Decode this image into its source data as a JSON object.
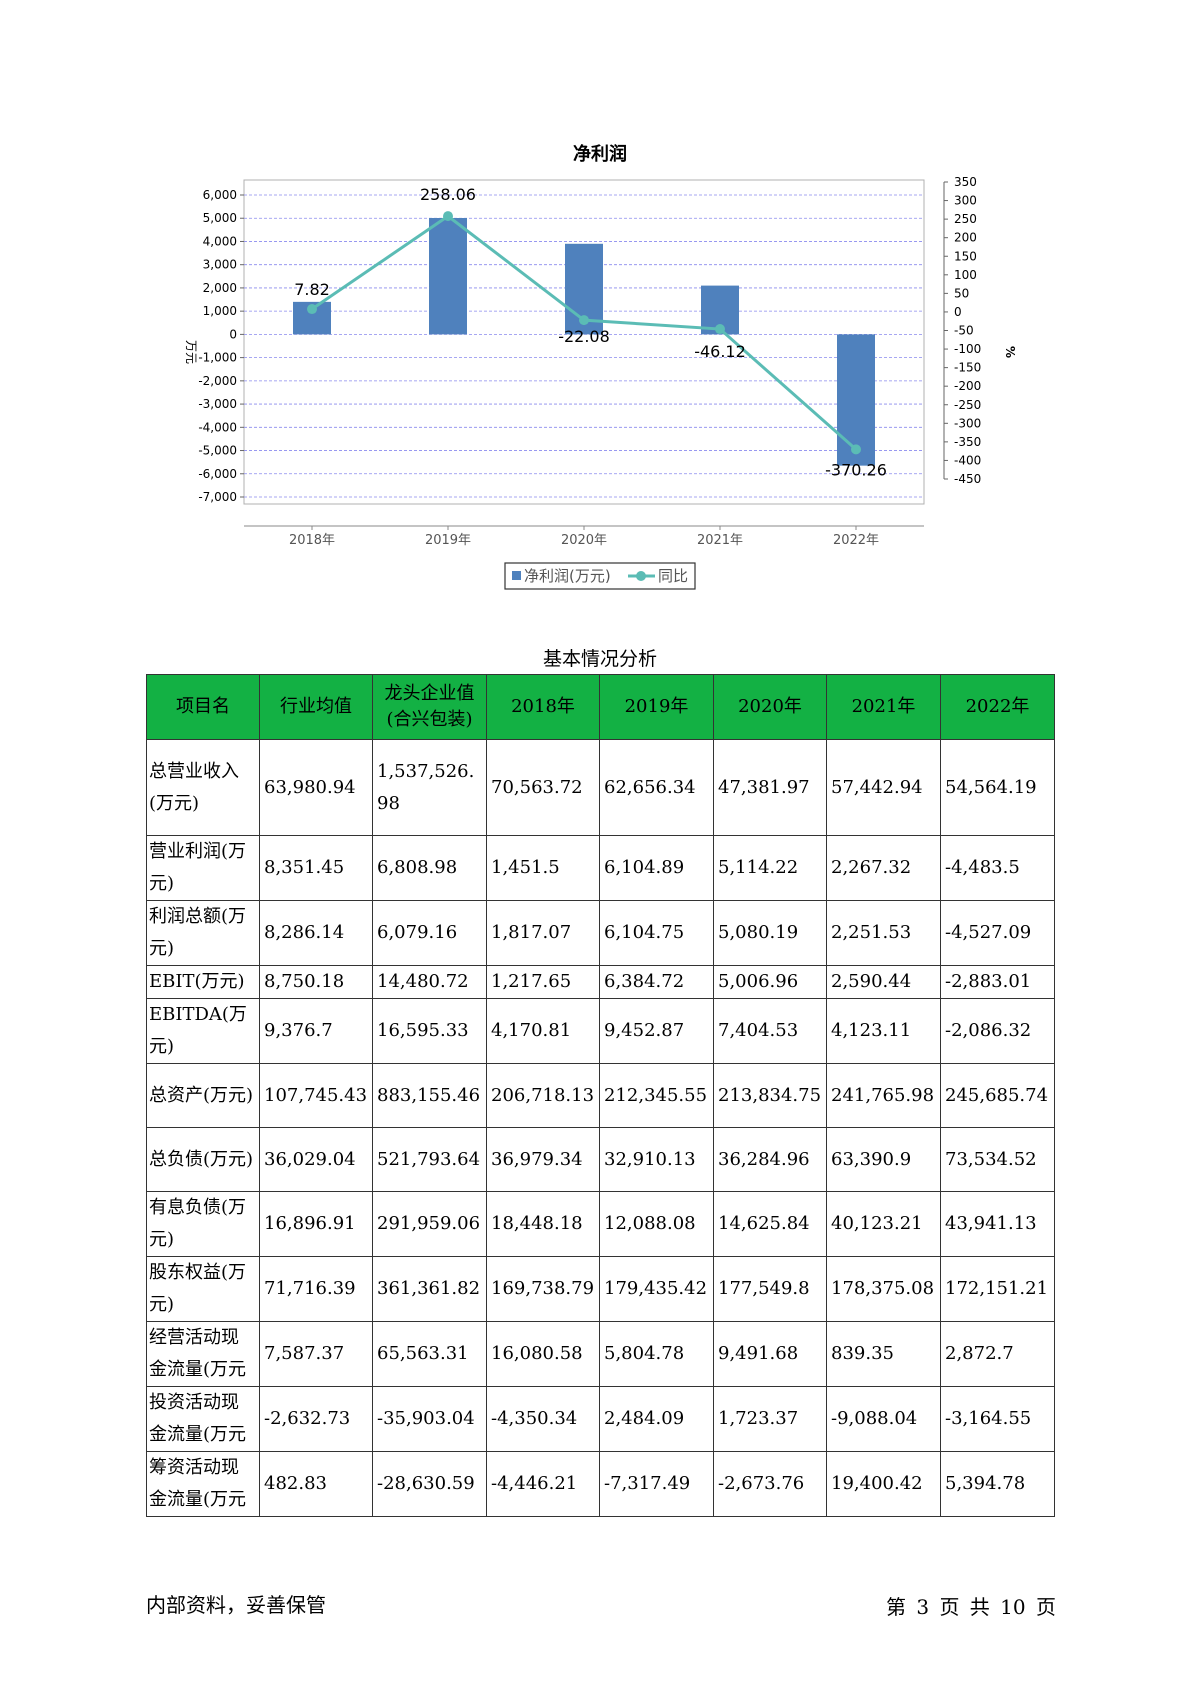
{
  "chart": {
    "title": "净利润",
    "y_left_label": "万元",
    "y_right_label": "%",
    "legend": [
      "净利润(万元)",
      "同比"
    ],
    "colors": {
      "bar": "#4f81bd",
      "line": "#5bbcb5",
      "grid": "#8a8aee",
      "axis": "#999999"
    }
  },
  "chart_data": {
    "type": "bar",
    "categories": [
      "2018年",
      "2019年",
      "2020年",
      "2021年",
      "2022年"
    ],
    "series": [
      {
        "name": "净利润(万元)",
        "type": "bar",
        "axis": "left",
        "values": [
          1400,
          5010,
          3900,
          2100,
          -5650
        ]
      },
      {
        "name": "同比",
        "type": "line",
        "axis": "right",
        "values": [
          7.82,
          258.06,
          -22.08,
          -46.12,
          -370.26
        ]
      }
    ],
    "data_labels": [
      "7.82",
      "258.06",
      "-22.08",
      "-46.12",
      "-370.26"
    ],
    "y_left_ticks": [
      "6,000",
      "5,000",
      "4,000",
      "3,000",
      "2,000",
      "1,000",
      "0",
      "-1,000",
      "-2,000",
      "-3,000",
      "-4,000",
      "-5,000",
      "-6,000",
      "-7,000"
    ],
    "y_right_ticks": [
      "350",
      "300",
      "250",
      "200",
      "150",
      "100",
      "50",
      "0",
      "-50",
      "-100",
      "-150",
      "-200",
      "-250",
      "-300",
      "-350",
      "-400",
      "-450"
    ],
    "ylim_left": [
      -7000,
      6000
    ],
    "ylim_right": [
      -450,
      350
    ],
    "grid": true,
    "legend_position": "bottom"
  },
  "table": {
    "title": "基本情况分析",
    "headers": [
      "项目名",
      "行业均值",
      "龙头企业值(合兴包装)",
      "2018年",
      "2019年",
      "2020年",
      "2021年",
      "2022年"
    ],
    "rows": [
      [
        "总营业收入(万元)",
        "63,980.94",
        "1,537,526.98",
        "70,563.72",
        "62,656.34",
        "47,381.97",
        "57,442.94",
        "54,564.19"
      ],
      [
        "营业利润(万元)",
        "8,351.45",
        "6,808.98",
        "1,451.5",
        "6,104.89",
        "5,114.22",
        "2,267.32",
        "-4,483.5"
      ],
      [
        "利润总额(万元)",
        "8,286.14",
        "6,079.16",
        "1,817.07",
        "6,104.75",
        "5,080.19",
        "2,251.53",
        "-4,527.09"
      ],
      [
        "EBIT(万元)",
        "8,750.18",
        "14,480.72",
        "1,217.65",
        "6,384.72",
        "5,006.96",
        "2,590.44",
        "-2,883.01"
      ],
      [
        "EBITDA(万元)",
        "9,376.7",
        "16,595.33",
        "4,170.81",
        "9,452.87",
        "7,404.53",
        "4,123.11",
        "-2,086.32"
      ],
      [
        "总资产(万元)",
        "107,745.43",
        "883,155.46",
        "206,718.13",
        "212,345.55",
        "213,834.75",
        "241,765.98",
        "245,685.74"
      ],
      [
        "总负债(万元)",
        "36,029.04",
        "521,793.64",
        "36,979.34",
        "32,910.13",
        "36,284.96",
        "63,390.9",
        "73,534.52"
      ],
      [
        "有息负债(万元)",
        "16,896.91",
        "291,959.06",
        "18,448.18",
        "12,088.08",
        "14,625.84",
        "40,123.21",
        "43,941.13"
      ],
      [
        "股东权益(万元)",
        "71,716.39",
        "361,361.82",
        "169,738.79",
        "179,435.42",
        "177,549.8",
        "178,375.08",
        "172,151.21"
      ],
      [
        "经营活动现金流量(万元",
        "7,587.37",
        "65,563.31",
        "16,080.58",
        "5,804.78",
        "9,491.68",
        "839.35",
        "2,872.7"
      ],
      [
        "投资活动现金流量(万元",
        "-2,632.73",
        "-35,903.04",
        "-4,350.34",
        "2,484.09",
        "1,723.37",
        "-9,088.04",
        "-3,164.55"
      ],
      [
        "筹资活动现金流量(万元",
        "482.83",
        "-28,630.59",
        "-4,446.21",
        "-7,317.49",
        "-2,673.76",
        "19,400.42",
        "5,394.78"
      ]
    ]
  },
  "footer": {
    "left": "内部资料，妥善保管",
    "right": "第 3 页  共 10 页"
  }
}
